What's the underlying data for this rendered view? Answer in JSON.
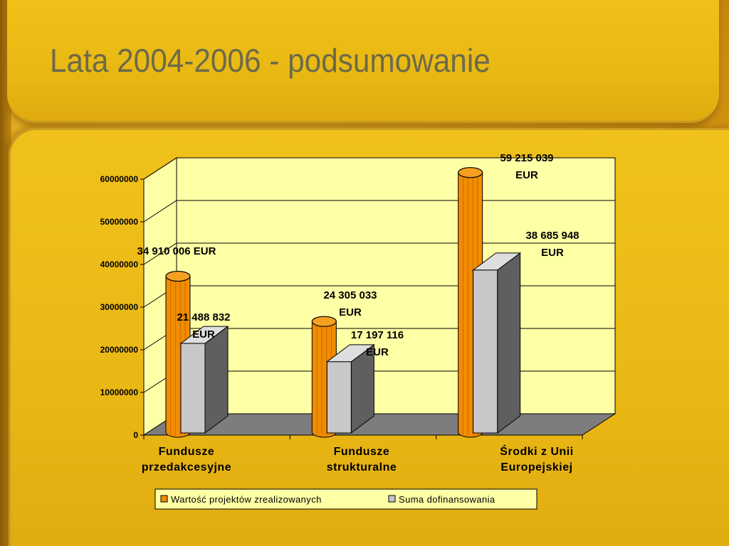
{
  "slide": {
    "title": "Lata 2004-2006 - podsumowanie"
  },
  "colors": {
    "series_1": "#f28c00",
    "series_2": "#c8c8c8",
    "plot_background": "#ffffa6",
    "floor": "#7d7d7d"
  },
  "chart_data": {
    "type": "bar",
    "style": "3d-clustered-column",
    "categories": [
      [
        "Fundusze",
        "przedakcesyjne"
      ],
      [
        "Fundusze",
        "strukturalne"
      ],
      [
        "Środki z Unii",
        "Europejskiej"
      ]
    ],
    "series": [
      {
        "name": "Wartość projektów zrealizowanych",
        "shape": "cylinder",
        "color": "#f28c00",
        "values": [
          34910006,
          24305033,
          59215039
        ],
        "labels": [
          [
            "34 910 006 EUR"
          ],
          [
            "24 305 033",
            "EUR"
          ],
          [
            "59 215 039",
            "EUR"
          ]
        ]
      },
      {
        "name": "Suma dofinansowania",
        "shape": "box",
        "color": "#c8c8c8",
        "values": [
          21488832,
          17197116,
          38685948
        ],
        "labels": [
          [
            "21 488 832",
            "EUR"
          ],
          [
            "17 197 116",
            "EUR"
          ],
          [
            "38 685 948",
            "EUR"
          ]
        ]
      }
    ],
    "ylim": [
      0,
      60000000
    ],
    "yticks": [
      "0",
      "10000000",
      "20000000",
      "30000000",
      "40000000",
      "50000000",
      "60000000"
    ],
    "grid": true,
    "legend": "bottom"
  }
}
